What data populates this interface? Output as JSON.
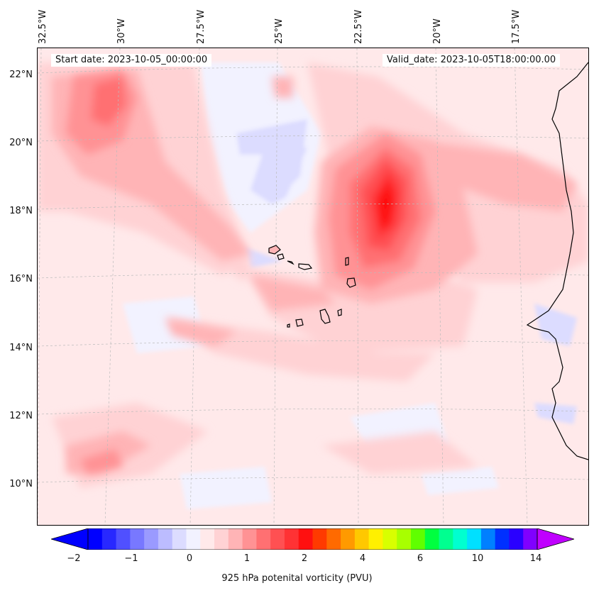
{
  "header": {
    "start_date": "Start date: 2023-10-05_00:00:00",
    "valid_date": "Valid_date: 2023-10-05T18:00:00.00"
  },
  "longitude_labels": [
    "32.5°W",
    "30°W",
    "27.5°W",
    "25°W",
    "22.5°W",
    "20°W",
    "17.5°W"
  ],
  "latitude_labels": [
    "22°N",
    "20°N",
    "18°N",
    "16°N",
    "14°N",
    "12°N",
    "10°N"
  ],
  "colorbar": {
    "title": "925 hPa potenital vorticity (PVU)",
    "ticks": [
      "−2",
      "−1",
      "0",
      "1",
      "2",
      "4",
      "6",
      "10",
      "14"
    ],
    "colors": [
      "#0000ff",
      "#2828ff",
      "#5050ff",
      "#7878ff",
      "#9a9aff",
      "#bcbcff",
      "#dcdcff",
      "#f2f2ff",
      "#ffe9ea",
      "#ffd2d4",
      "#ffb4b6",
      "#ff9294",
      "#ff7072",
      "#ff5052",
      "#ff3234",
      "#ff1010",
      "#ff3a00",
      "#ff6a00",
      "#ff9a00",
      "#ffc800",
      "#fff000",
      "#d8ff00",
      "#a8ff00",
      "#60ff00",
      "#00ff40",
      "#00ff90",
      "#00ffd0",
      "#00e0ff",
      "#0080ff",
      "#0030ff",
      "#2a00ff",
      "#8000ff"
    ],
    "under_color": "#0000ff",
    "over_color": "#c000ff"
  }
}
